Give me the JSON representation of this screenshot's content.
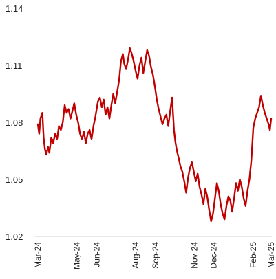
{
  "chart_data": {
    "type": "line",
    "title": "",
    "xlabel": "",
    "ylabel": "",
    "ylim": [
      1.02,
      1.14
    ],
    "grid": false,
    "legend": "none",
    "line_color": "#C00000",
    "y_ticks": [
      1.02,
      1.05,
      1.08,
      1.11,
      1.14
    ],
    "y_tick_labels": [
      "1.02",
      "1.05",
      "1.08",
      "1.11",
      "1.14"
    ],
    "x_ticks": [
      "2024-03-01",
      "2024-05-01",
      "2024-06-01",
      "2024-08-01",
      "2024-09-01",
      "2024-11-01",
      "2024-12-01",
      "2025-02-01",
      "2025-03-01"
    ],
    "x_tick_labels": [
      "Mar-24",
      "May-24",
      "Jun-24",
      "Aug-24",
      "Sep-24",
      "Nov-24",
      "Dec-24",
      "Feb-25",
      "Mar-25"
    ],
    "x_range": [
      "2024-03-01",
      "2025-03-01"
    ],
    "series": [
      {
        "name": "",
        "points": [
          [
            "2024-03-01",
            1.079
          ],
          [
            "2024-03-03",
            1.074
          ],
          [
            "2024-03-05",
            1.082
          ],
          [
            "2024-03-08",
            1.085
          ],
          [
            "2024-03-10",
            1.072
          ],
          [
            "2024-03-12",
            1.066
          ],
          [
            "2024-03-14",
            1.063
          ],
          [
            "2024-03-17",
            1.067
          ],
          [
            "2024-03-19",
            1.064
          ],
          [
            "2024-03-22",
            1.072
          ],
          [
            "2024-03-25",
            1.069
          ],
          [
            "2024-03-28",
            1.074
          ],
          [
            "2024-03-31",
            1.071
          ],
          [
            "2024-04-03",
            1.078
          ],
          [
            "2024-04-06",
            1.076
          ],
          [
            "2024-04-09",
            1.08
          ],
          [
            "2024-04-12",
            1.089
          ],
          [
            "2024-04-15",
            1.085
          ],
          [
            "2024-04-18",
            1.087
          ],
          [
            "2024-04-21",
            1.082
          ],
          [
            "2024-04-24",
            1.086
          ],
          [
            "2024-04-27",
            1.09
          ],
          [
            "2024-04-30",
            1.084
          ],
          [
            "2024-05-03",
            1.08
          ],
          [
            "2024-05-06",
            1.074
          ],
          [
            "2024-05-09",
            1.071
          ],
          [
            "2024-05-12",
            1.075
          ],
          [
            "2024-05-15",
            1.069
          ],
          [
            "2024-05-18",
            1.074
          ],
          [
            "2024-05-21",
            1.076
          ],
          [
            "2024-05-24",
            1.071
          ],
          [
            "2024-05-27",
            1.078
          ],
          [
            "2024-05-30",
            1.083
          ],
          [
            "2024-06-03",
            1.091
          ],
          [
            "2024-06-06",
            1.093
          ],
          [
            "2024-06-09",
            1.088
          ],
          [
            "2024-06-12",
            1.092
          ],
          [
            "2024-06-15",
            1.084
          ],
          [
            "2024-06-18",
            1.088
          ],
          [
            "2024-06-21",
            1.082
          ],
          [
            "2024-06-24",
            1.089
          ],
          [
            "2024-06-27",
            1.095
          ],
          [
            "2024-06-30",
            1.09
          ],
          [
            "2024-07-03",
            1.096
          ],
          [
            "2024-07-06",
            1.102
          ],
          [
            "2024-07-09",
            1.112
          ],
          [
            "2024-07-12",
            1.116
          ],
          [
            "2024-07-14",
            1.111
          ],
          [
            "2024-07-17",
            1.108
          ],
          [
            "2024-07-20",
            1.113
          ],
          [
            "2024-07-23",
            1.119
          ],
          [
            "2024-07-26",
            1.116
          ],
          [
            "2024-07-29",
            1.112
          ],
          [
            "2024-08-01",
            1.107
          ],
          [
            "2024-08-04",
            1.103
          ],
          [
            "2024-08-07",
            1.11
          ],
          [
            "2024-08-10",
            1.114
          ],
          [
            "2024-08-13",
            1.106
          ],
          [
            "2024-08-16",
            1.112
          ],
          [
            "2024-08-19",
            1.118
          ],
          [
            "2024-08-22",
            1.115
          ],
          [
            "2024-08-25",
            1.109
          ],
          [
            "2024-08-28",
            1.105
          ],
          [
            "2024-08-31",
            1.099
          ],
          [
            "2024-09-03",
            1.092
          ],
          [
            "2024-09-06",
            1.087
          ],
          [
            "2024-09-09",
            1.083
          ],
          [
            "2024-09-12",
            1.079
          ],
          [
            "2024-09-15",
            1.082
          ],
          [
            "2024-09-18",
            1.084
          ],
          [
            "2024-09-21",
            1.078
          ],
          [
            "2024-09-24",
            1.086
          ],
          [
            "2024-09-27",
            1.093
          ],
          [
            "2024-09-30",
            1.076
          ],
          [
            "2024-10-02",
            1.07
          ],
          [
            "2024-10-04",
            1.066
          ],
          [
            "2024-10-06",
            1.063
          ],
          [
            "2024-10-08",
            1.06
          ],
          [
            "2024-10-10",
            1.057
          ],
          [
            "2024-10-13",
            1.054
          ],
          [
            "2024-10-16",
            1.049
          ],
          [
            "2024-10-19",
            1.043
          ],
          [
            "2024-10-22",
            1.051
          ],
          [
            "2024-10-25",
            1.056
          ],
          [
            "2024-10-28",
            1.059
          ],
          [
            "2024-10-31",
            1.054
          ],
          [
            "2024-11-03",
            1.049
          ],
          [
            "2024-11-06",
            1.053
          ],
          [
            "2024-11-09",
            1.046
          ],
          [
            "2024-11-12",
            1.042
          ],
          [
            "2024-11-15",
            1.037
          ],
          [
            "2024-11-18",
            1.045
          ],
          [
            "2024-11-21",
            1.041
          ],
          [
            "2024-11-24",
            1.034
          ],
          [
            "2024-11-27",
            1.028
          ],
          [
            "2024-11-30",
            1.032
          ],
          [
            "2024-12-03",
            1.04
          ],
          [
            "2024-12-06",
            1.048
          ],
          [
            "2024-12-09",
            1.044
          ],
          [
            "2024-12-12",
            1.037
          ],
          [
            "2024-12-15",
            1.032
          ],
          [
            "2024-12-18",
            1.029
          ],
          [
            "2024-12-21",
            1.036
          ],
          [
            "2024-12-24",
            1.041
          ],
          [
            "2024-12-27",
            1.039
          ],
          [
            "2024-12-30",
            1.033
          ],
          [
            "2025-01-02",
            1.04
          ],
          [
            "2025-01-05",
            1.048
          ],
          [
            "2025-01-08",
            1.044
          ],
          [
            "2025-01-11",
            1.05
          ],
          [
            "2025-01-14",
            1.046
          ],
          [
            "2025-01-17",
            1.04
          ],
          [
            "2025-01-20",
            1.036
          ],
          [
            "2025-01-23",
            1.044
          ],
          [
            "2025-01-26",
            1.05
          ],
          [
            "2025-01-29",
            1.06
          ],
          [
            "2025-02-01",
            1.077
          ],
          [
            "2025-02-04",
            1.082
          ],
          [
            "2025-02-07",
            1.085
          ],
          [
            "2025-02-10",
            1.088
          ],
          [
            "2025-02-13",
            1.094
          ],
          [
            "2025-02-16",
            1.089
          ],
          [
            "2025-02-19",
            1.085
          ],
          [
            "2025-02-22",
            1.082
          ],
          [
            "2025-02-25",
            1.079
          ],
          [
            "2025-02-27",
            1.076
          ],
          [
            "2025-03-01",
            1.082
          ]
        ]
      }
    ]
  }
}
